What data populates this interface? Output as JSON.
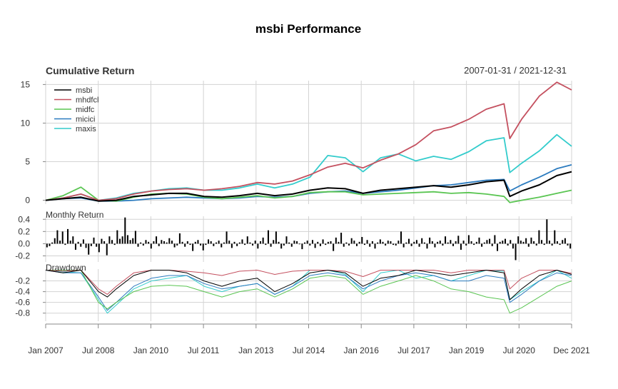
{
  "title": "msbi Performance",
  "panels": {
    "cumulative": {
      "label": "Cumulative Return",
      "date_range": "2007-01-31 / 2021-12-31"
    },
    "monthly": {
      "label": "Monthly Return"
    },
    "drawdown": {
      "label": "Drawdown"
    }
  },
  "x_ticks": [
    "Jan 2007",
    "Jul 2008",
    "Jan 2010",
    "Jul 2011",
    "Jan 2013",
    "Jul 2014",
    "Jan 2016",
    "Jul 2017",
    "Jan 2019",
    "Jul 2020",
    "Dec 2021"
  ],
  "colors": {
    "msbi": "#000000",
    "mhdfcl": "#c4505f",
    "midfc": "#5ac552",
    "micici": "#2b7bbf",
    "maxis": "#33cccc",
    "grid": "#d3d3d3"
  },
  "chart_data": [
    {
      "type": "line",
      "title": "Cumulative Return",
      "x_range": [
        "2007-01-31",
        "2021-12-31"
      ],
      "ylim": [
        -0.5,
        15.5
      ],
      "y_ticks": [
        0,
        5,
        10,
        15
      ],
      "legend_position": "top-left",
      "grid": true,
      "x": [
        "2007-01-31",
        "2007-07-31",
        "2008-01-31",
        "2008-07-31",
        "2009-01-31",
        "2009-07-31",
        "2010-01-31",
        "2010-07-31",
        "2011-01-31",
        "2011-07-31",
        "2012-01-31",
        "2012-07-31",
        "2013-01-31",
        "2013-07-31",
        "2014-01-31",
        "2014-07-31",
        "2015-01-31",
        "2015-07-31",
        "2016-01-31",
        "2016-07-31",
        "2017-01-31",
        "2017-07-31",
        "2018-01-31",
        "2018-07-31",
        "2019-01-31",
        "2019-07-31",
        "2020-01-31",
        "2020-03-31",
        "2020-07-31",
        "2021-01-31",
        "2021-07-31",
        "2021-12-31"
      ],
      "series": [
        {
          "name": "msbi",
          "values": [
            0.0,
            0.2,
            0.4,
            -0.1,
            0.0,
            0.5,
            0.7,
            0.9,
            0.9,
            0.5,
            0.4,
            0.6,
            0.9,
            0.6,
            0.8,
            1.3,
            1.6,
            1.5,
            0.9,
            1.3,
            1.5,
            1.7,
            1.9,
            1.7,
            2.0,
            2.4,
            2.6,
            0.5,
            1.2,
            2.0,
            3.2,
            3.7
          ]
        },
        {
          "name": "mhdfcl",
          "values": [
            0.0,
            0.3,
            0.8,
            0.0,
            0.2,
            0.8,
            1.2,
            1.4,
            1.5,
            1.3,
            1.5,
            1.8,
            2.3,
            2.1,
            2.5,
            3.3,
            4.3,
            4.8,
            4.2,
            5.2,
            6.0,
            7.2,
            9.0,
            9.5,
            10.5,
            11.8,
            12.5,
            8.0,
            10.5,
            13.5,
            15.3,
            14.3
          ]
        },
        {
          "name": "midfc",
          "values": [
            0.0,
            0.6,
            1.7,
            0.0,
            -0.1,
            0.4,
            0.8,
            0.9,
            0.8,
            0.4,
            0.2,
            0.4,
            0.6,
            0.3,
            0.5,
            1.0,
            1.1,
            1.1,
            0.7,
            0.8,
            0.9,
            1.0,
            1.1,
            0.9,
            1.0,
            0.8,
            0.5,
            -0.3,
            0.0,
            0.4,
            0.9,
            1.3
          ]
        },
        {
          "name": "micici",
          "values": [
            0.0,
            0.2,
            0.3,
            -0.1,
            -0.1,
            0.0,
            0.2,
            0.3,
            0.4,
            0.3,
            0.2,
            0.3,
            0.5,
            0.4,
            0.5,
            0.9,
            1.1,
            1.2,
            0.9,
            1.1,
            1.3,
            1.6,
            1.9,
            2.0,
            2.3,
            2.6,
            2.7,
            1.2,
            2.0,
            3.0,
            4.1,
            4.6
          ]
        },
        {
          "name": "maxis",
          "values": [
            0.0,
            0.3,
            0.8,
            0.0,
            0.3,
            0.9,
            1.2,
            1.5,
            1.6,
            1.3,
            1.3,
            1.6,
            2.1,
            1.6,
            2.1,
            3.0,
            5.8,
            5.5,
            3.7,
            5.5,
            6.0,
            5.1,
            5.7,
            5.3,
            6.3,
            7.7,
            8.1,
            3.6,
            4.8,
            6.4,
            8.5,
            7.0
          ]
        }
      ]
    },
    {
      "type": "bar",
      "title": "Monthly Return",
      "ylim": [
        -0.3,
        0.45
      ],
      "y_ticks": [
        0.4,
        0.2,
        0.0,
        -0.2
      ],
      "values": [
        -0.06,
        -0.04,
        0.02,
        0.09,
        0.22,
        0.05,
        0.2,
        -0.02,
        0.24,
        0.05,
        0.12,
        -0.1,
        0.03,
        -0.05,
        0.07,
        -0.07,
        -0.18,
        -0.04,
        0.1,
        -0.05,
        -0.14,
        0.08,
        0.04,
        -0.19,
        0.12,
        0.06,
        -0.02,
        0.22,
        0.08,
        0.12,
        0.43,
        0.14,
        0.06,
        0.09,
        0.21,
        -0.05,
        0.02,
        -0.03,
        0.06,
        0.03,
        -0.08,
        0.04,
        0.12,
        -0.04,
        0.06,
        0.04,
        0.02,
        0.09,
        0.05,
        -0.06,
        -0.03,
        0.17,
        0.03,
        -0.05,
        0.04,
        -0.02,
        -0.12,
        0.03,
        0.06,
        -0.03,
        -0.11,
        -0.02,
        0.07,
        0.04,
        -0.04,
        0.02,
        0.05,
        -0.06,
        0.02,
        0.2,
        0.05,
        -0.07,
        0.03,
        -0.04,
        0.02,
        0.07,
        -0.02,
        0.12,
        0.02,
        -0.03,
        0.05,
        -0.08,
        0.04,
        0.1,
        -0.02,
        0.22,
        -0.05,
        0.06,
        0.2,
        0.03,
        -0.08,
        -0.03,
        0.12,
        0.02,
        -0.05,
        0.05,
        0.04,
        -0.01,
        -0.09,
        0.02,
        0.05,
        -0.03,
        0.06,
        -0.07,
        0.03,
        -0.04,
        0.07,
        -0.02,
        0.03,
        0.04,
        -0.12,
        0.1,
        0.03,
        0.18,
        -0.05,
        0.02,
        -0.03,
        0.09,
        0.05,
        -0.04,
        0.03,
        0.11,
        -0.02,
        0.06,
        -0.05,
        0.04,
        -0.08,
        0.02,
        0.07,
        0.03,
        -0.03,
        0.05,
        0.04,
        -0.02,
        -0.03,
        0.05,
        0.2,
        -0.06,
        0.02,
        0.08,
        -0.04,
        0.03,
        0.06,
        -0.05,
        0.09,
        0.02,
        -0.08,
        0.1,
        0.04,
        -0.06,
        0.03,
        0.05,
        -0.03,
        0.12,
        0.02,
        0.06,
        -0.04,
        0.04,
        0.13,
        -0.1,
        0.05,
        -0.03,
        0.14,
        0.04,
        -0.02,
        0.03,
        0.1,
        -0.05,
        0.02,
        0.06,
        0.08,
        -0.04,
        0.14,
        -0.12,
        0.03,
        0.05,
        0.08,
        -0.03,
        0.06,
        -0.08,
        -0.27,
        0.12,
        0.05,
        0.03,
        0.09,
        -0.05,
        0.1,
        0.04,
        -0.03,
        0.22,
        0.06,
        -0.02,
        0.4,
        0.05,
        -0.03,
        0.22,
        0.04,
        -0.02,
        0.06,
        0.09,
        -0.03,
        -0.08
      ]
    },
    {
      "type": "line",
      "title": "Drawdown",
      "ylim": [
        -0.95,
        0.02
      ],
      "y_ticks": [
        -0.2,
        -0.4,
        -0.6,
        -0.8
      ],
      "grid": true,
      "x": [
        "2007-01-31",
        "2007-07-31",
        "2008-01-31",
        "2008-07-31",
        "2008-10-31",
        "2009-01-31",
        "2009-07-31",
        "2010-01-31",
        "2010-07-31",
        "2011-01-31",
        "2011-07-31",
        "2012-01-31",
        "2012-07-31",
        "2013-01-31",
        "2013-07-31",
        "2014-01-31",
        "2014-07-31",
        "2015-01-31",
        "2015-07-31",
        "2016-01-31",
        "2016-07-31",
        "2017-01-31",
        "2017-07-31",
        "2018-01-31",
        "2018-07-31",
        "2019-01-31",
        "2019-07-31",
        "2020-01-31",
        "2020-03-31",
        "2020-07-31",
        "2021-01-31",
        "2021-07-31",
        "2021-12-31"
      ],
      "series": [
        {
          "name": "msbi",
          "values": [
            0.0,
            -0.05,
            0.0,
            -0.4,
            -0.5,
            -0.35,
            -0.1,
            0.0,
            0.0,
            -0.05,
            -0.2,
            -0.3,
            -0.2,
            -0.15,
            -0.4,
            -0.25,
            -0.05,
            0.0,
            -0.05,
            -0.3,
            -0.15,
            -0.1,
            0.0,
            -0.05,
            -0.1,
            -0.05,
            0.0,
            -0.05,
            -0.55,
            -0.35,
            -0.1,
            0.0,
            -0.08
          ]
        },
        {
          "name": "mhdfcl",
          "values": [
            0.0,
            -0.02,
            0.0,
            -0.35,
            -0.45,
            -0.3,
            -0.05,
            0.0,
            0.0,
            -0.02,
            -0.05,
            -0.1,
            -0.02,
            0.0,
            -0.08,
            -0.02,
            0.0,
            0.0,
            -0.02,
            -0.12,
            0.0,
            0.0,
            0.0,
            0.0,
            -0.05,
            0.0,
            0.0,
            0.0,
            -0.35,
            -0.15,
            0.0,
            0.0,
            -0.06
          ]
        },
        {
          "name": "midfc",
          "values": [
            0.0,
            0.0,
            0.0,
            -0.6,
            -0.72,
            -0.6,
            -0.4,
            -0.3,
            -0.28,
            -0.3,
            -0.4,
            -0.5,
            -0.4,
            -0.35,
            -0.5,
            -0.35,
            -0.15,
            -0.1,
            -0.15,
            -0.45,
            -0.3,
            -0.2,
            -0.1,
            -0.2,
            -0.35,
            -0.4,
            -0.5,
            -0.55,
            -0.8,
            -0.7,
            -0.5,
            -0.3,
            -0.2
          ]
        },
        {
          "name": "micici",
          "values": [
            0.0,
            -0.05,
            -0.05,
            -0.5,
            -0.75,
            -0.6,
            -0.3,
            -0.15,
            -0.1,
            -0.1,
            -0.25,
            -0.35,
            -0.3,
            -0.25,
            -0.45,
            -0.3,
            -0.1,
            -0.05,
            -0.1,
            -0.35,
            -0.2,
            -0.1,
            -0.05,
            -0.1,
            -0.2,
            -0.2,
            -0.1,
            -0.15,
            -0.6,
            -0.45,
            -0.2,
            -0.05,
            -0.1
          ]
        },
        {
          "name": "maxis",
          "values": [
            0.0,
            -0.03,
            -0.05,
            -0.55,
            -0.8,
            -0.65,
            -0.35,
            -0.2,
            -0.15,
            -0.1,
            -0.3,
            -0.4,
            -0.3,
            -0.25,
            -0.45,
            -0.3,
            0.0,
            0.0,
            -0.08,
            -0.4,
            -0.05,
            0.0,
            -0.15,
            -0.1,
            -0.2,
            -0.1,
            0.0,
            -0.02,
            -0.55,
            -0.4,
            -0.2,
            0.0,
            -0.15
          ]
        }
      ]
    }
  ]
}
